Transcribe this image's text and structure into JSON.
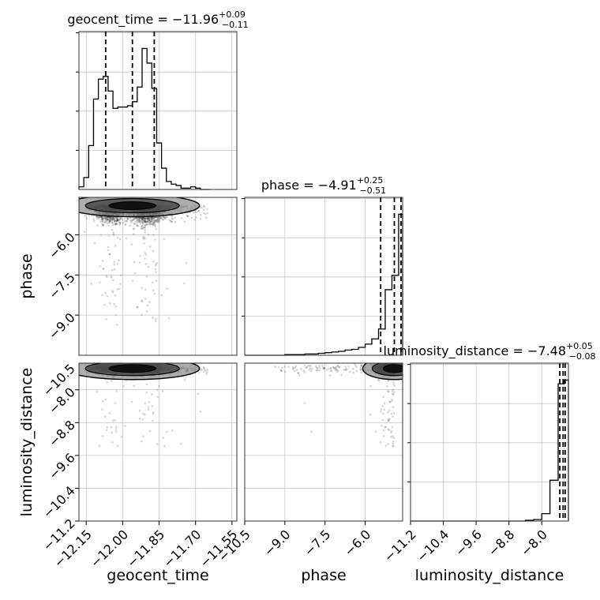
{
  "chart_data": {
    "type": "corner",
    "parameters": [
      {
        "name": "geocent_time",
        "title": {
          "param": "geocent_time",
          "equals": " = ",
          "median": "−11.96",
          "plus": "+0.09",
          "minus": "−0.11"
        },
        "axis_label": "geocent_time",
        "range": [
          -12.18,
          -11.53
        ],
        "ticks": [
          -12.15,
          -12.0,
          -11.85,
          -11.7,
          -11.55
        ],
        "tick_labels": [
          "−12.15",
          "−12.00",
          "−11.85",
          "−11.70",
          "−11.55"
        ],
        "quantiles": [
          -12.07,
          -11.96,
          -11.87
        ],
        "histogram": {
          "edges": [
            -12.18,
            -12.16,
            -12.14,
            -12.12,
            -12.1,
            -12.08,
            -12.06,
            -12.04,
            -12.02,
            -12.0,
            -11.98,
            -11.96,
            -11.94,
            -11.92,
            -11.9,
            -11.88,
            -11.86,
            -11.84,
            -11.82,
            -11.8,
            -11.78,
            -11.76,
            -11.74,
            -11.72,
            -11.7,
            -11.68,
            -11.66,
            -11.64
          ],
          "counts": [
            2,
            9,
            33,
            68,
            83,
            85,
            74,
            61,
            62,
            62,
            63,
            66,
            77,
            106,
            95,
            76,
            35,
            16,
            6,
            4,
            3,
            1,
            1,
            2,
            1,
            0,
            0
          ]
        }
      },
      {
        "name": "phase",
        "title": {
          "param": "phase",
          "equals": " = ",
          "median": "−4.91",
          "plus": "+0.25",
          "minus": "−0.51"
        },
        "axis_label": "phase",
        "range": [
          -10.5,
          -4.6
        ],
        "ticks": [
          -10.5,
          -9.0,
          -7.5,
          -6.0
        ],
        "tick_labels": [
          "−10.5",
          "−9.0",
          "−7.5",
          "−6.0"
        ],
        "y_ticks": [
          -6.0,
          -7.5,
          -9.0
        ],
        "y_tick_labels": [
          "−6.0",
          "−7.5",
          "−9.0"
        ],
        "quantiles": [
          -5.42,
          -4.91,
          -4.66
        ],
        "histogram": {
          "edges": [
            -10.5,
            -10.25,
            -10.0,
            -9.75,
            -9.5,
            -9.25,
            -9.0,
            -8.75,
            -8.5,
            -8.25,
            -8.0,
            -7.75,
            -7.5,
            -7.25,
            -7.0,
            -6.75,
            -6.5,
            -6.25,
            -6.0,
            -5.75,
            -5.5,
            -5.25,
            -5.0,
            -4.75,
            -4.6
          ],
          "counts": [
            0,
            0,
            0,
            0,
            0,
            0,
            1,
            1,
            1,
            2,
            2,
            3,
            4,
            5,
            6,
            8,
            9,
            12,
            17,
            25,
            40,
            100,
            122,
            215
          ]
        }
      },
      {
        "name": "luminosity_distance",
        "title": {
          "param": "luminosity_distance",
          "equals": " = ",
          "median": "−7.48",
          "plus": "+0.05",
          "minus": "−0.08"
        },
        "axis_label": "luminosity_distance",
        "range": [
          -11.2,
          -7.35
        ],
        "ticks": [
          -11.2,
          -10.4,
          -9.6,
          -8.8,
          -8.0
        ],
        "tick_labels": [
          "−11.2",
          "−10.4",
          "−9.6",
          "−8.8",
          "−8.0"
        ],
        "y_ticks": [
          -8.0,
          -8.8,
          -9.6,
          -10.4,
          -11.2
        ],
        "y_tick_labels": [
          "−8.0",
          "−8.8",
          "−9.6",
          "−10.4",
          "−11.2"
        ],
        "y_top_tick_label": "−10.5",
        "quantiles": [
          -7.56,
          -7.48,
          -7.43
        ],
        "histogram": {
          "edges": [
            -11.2,
            -11.0,
            -10.8,
            -10.6,
            -10.4,
            -10.2,
            -10.0,
            -9.8,
            -9.6,
            -9.4,
            -9.2,
            -9.0,
            -8.8,
            -8.6,
            -8.4,
            -8.2,
            -8.0,
            -7.8,
            -7.6,
            -7.45,
            -7.35
          ],
          "counts": [
            0,
            0,
            0,
            0,
            0,
            0,
            0,
            0,
            0,
            0,
            0,
            0,
            0,
            0,
            1,
            2,
            10,
            55,
            185,
            190
          ]
        }
      }
    ],
    "grid": true,
    "contours": true
  }
}
